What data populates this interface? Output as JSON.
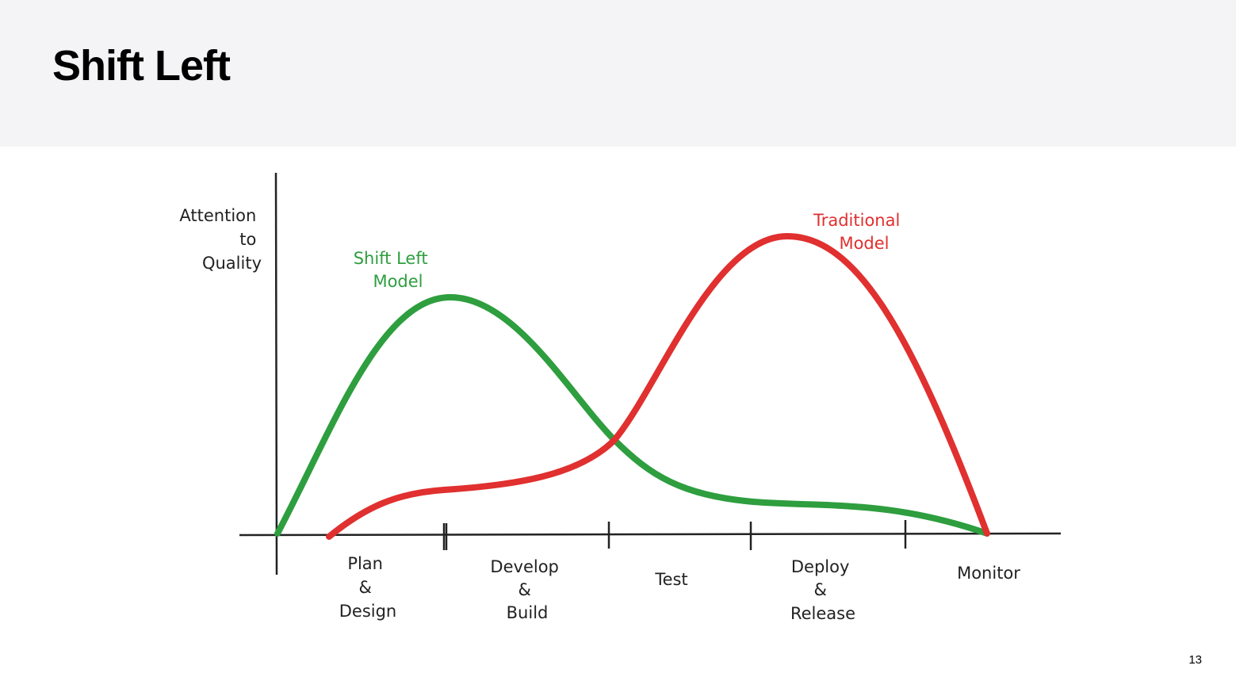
{
  "header": {
    "title": "Shift Left"
  },
  "diagram": {
    "y_axis_label": [
      "Attention",
      "to",
      "Quality"
    ],
    "curves": [
      {
        "label": [
          "Shift Left",
          "Model"
        ]
      },
      {
        "label": [
          "Traditional",
          "Model"
        ]
      }
    ],
    "phases": [
      [
        "Plan",
        "&",
        "Design"
      ],
      [
        "Develop",
        "&",
        "Build"
      ],
      [
        "Test"
      ],
      [
        "Deploy",
        "&",
        "Release"
      ],
      [
        "Monitor"
      ]
    ]
  },
  "footer": {
    "page_number": "13"
  }
}
